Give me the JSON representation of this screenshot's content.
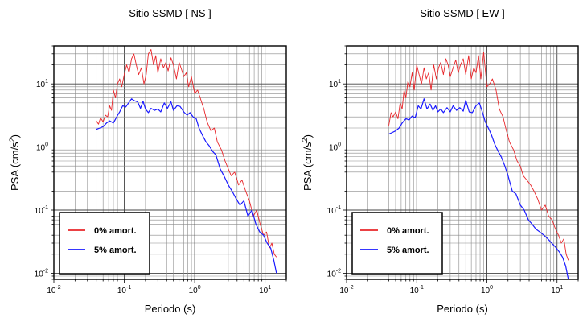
{
  "chart_data": [
    {
      "type": "line",
      "title": "Sitio SSMD [ NS ]",
      "xlabel": "Periodo (s)",
      "ylabel": {
        "base": "PSA (cm/s",
        "sup": "2",
        "tail": ")"
      },
      "xscale": "log",
      "yscale": "log",
      "xlim": [
        0.01,
        20
      ],
      "ylim": [
        0.008,
        40
      ],
      "grid": true,
      "legend_position": "bottom-left",
      "xticks": [
        {
          "value": 0.01,
          "base": "10",
          "exp": "-2"
        },
        {
          "value": 0.1,
          "base": "10",
          "exp": "-1"
        },
        {
          "value": 1,
          "base": "10",
          "exp": "0"
        },
        {
          "value": 10,
          "base": "10",
          "exp": "1"
        }
      ],
      "yticks": [
        {
          "value": 0.01,
          "base": "10",
          "exp": "-2"
        },
        {
          "value": 0.1,
          "base": "10",
          "exp": "-1"
        },
        {
          "value": 1,
          "base": "10",
          "exp": "0"
        },
        {
          "value": 10,
          "base": "10",
          "exp": "1"
        }
      ],
      "series": [
        {
          "name": "0% amort.",
          "color": "#e8262a",
          "x": [
            0.04,
            0.043,
            0.046,
            0.05,
            0.054,
            0.058,
            0.062,
            0.066,
            0.07,
            0.075,
            0.08,
            0.086,
            0.092,
            0.1,
            0.108,
            0.117,
            0.127,
            0.137,
            0.148,
            0.16,
            0.175,
            0.19,
            0.205,
            0.22,
            0.24,
            0.26,
            0.28,
            0.3,
            0.33,
            0.36,
            0.39,
            0.42,
            0.46,
            0.5,
            0.55,
            0.6,
            0.65,
            0.7,
            0.76,
            0.82,
            0.9,
            1.0,
            1.1,
            1.2,
            1.35,
            1.5,
            1.7,
            1.9,
            2.1,
            2.4,
            2.7,
            3.0,
            3.3,
            3.7,
            4.2,
            4.7,
            5.3,
            6.0,
            6.8,
            7.6,
            8.5,
            9.5,
            10.5,
            11.5,
            12.5,
            13.5,
            14.5
          ],
          "y": [
            2.6,
            2.3,
            2.9,
            2.5,
            3.2,
            3.0,
            4.5,
            3.8,
            8.0,
            6.0,
            10.0,
            12.0,
            9.0,
            14.0,
            20.0,
            15.0,
            25.0,
            30.0,
            20.0,
            14.0,
            18.0,
            10.0,
            14.0,
            30.0,
            35.0,
            20.0,
            28.0,
            15.0,
            25.0,
            18.0,
            22.0,
            16.0,
            26.0,
            20.0,
            12.0,
            22.0,
            17.0,
            13.0,
            15.0,
            9.0,
            13.0,
            7.0,
            8.0,
            6.0,
            4.0,
            2.5,
            1.8,
            2.0,
            1.2,
            0.9,
            0.6,
            0.45,
            0.35,
            0.4,
            0.25,
            0.3,
            0.2,
            0.14,
            0.08,
            0.1,
            0.06,
            0.04,
            0.045,
            0.025,
            0.03,
            0.02,
            0.018
          ]
        },
        {
          "name": "5% amort.",
          "color": "#1a1aff",
          "x": [
            0.04,
            0.045,
            0.05,
            0.056,
            0.062,
            0.07,
            0.078,
            0.086,
            0.095,
            0.105,
            0.115,
            0.127,
            0.14,
            0.155,
            0.17,
            0.185,
            0.2,
            0.22,
            0.24,
            0.27,
            0.3,
            0.33,
            0.37,
            0.41,
            0.46,
            0.5,
            0.56,
            0.62,
            0.7,
            0.78,
            0.86,
            0.95,
            1.05,
            1.15,
            1.3,
            1.45,
            1.6,
            1.8,
            2.0,
            2.3,
            2.6,
            3.0,
            3.4,
            3.9,
            4.4,
            5.0,
            5.7,
            6.5,
            7.4,
            8.4,
            9.5,
            10.7,
            12.0,
            13.3,
            14.5
          ],
          "y": [
            1.9,
            2.0,
            2.1,
            2.4,
            2.6,
            2.4,
            3.0,
            3.6,
            4.5,
            4.3,
            5.0,
            5.8,
            5.4,
            5.2,
            4.1,
            5.3,
            4.0,
            3.5,
            4.1,
            3.8,
            4.0,
            3.6,
            5.0,
            4.1,
            5.2,
            3.8,
            4.5,
            4.4,
            3.6,
            3.2,
            3.5,
            3.0,
            2.8,
            2.0,
            1.5,
            1.2,
            1.05,
            0.85,
            0.75,
            0.45,
            0.35,
            0.25,
            0.2,
            0.15,
            0.12,
            0.14,
            0.08,
            0.1,
            0.06,
            0.045,
            0.04,
            0.03,
            0.025,
            0.016,
            0.01
          ]
        }
      ]
    },
    {
      "type": "line",
      "title": "Sitio SSMD [ EW ]",
      "xlabel": "Periodo (s)",
      "ylabel": {
        "base": "PSA (cm/s",
        "sup": "2",
        "tail": ")"
      },
      "xscale": "log",
      "yscale": "log",
      "xlim": [
        0.01,
        20
      ],
      "ylim": [
        0.008,
        40
      ],
      "grid": true,
      "legend_position": "bottom-left",
      "xticks": [
        {
          "value": 0.01,
          "base": "10",
          "exp": "-2"
        },
        {
          "value": 0.1,
          "base": "10",
          "exp": "-1"
        },
        {
          "value": 1,
          "base": "10",
          "exp": "0"
        },
        {
          "value": 10,
          "base": "10",
          "exp": "1"
        }
      ],
      "yticks": [
        {
          "value": 0.01,
          "base": "10",
          "exp": "-2"
        },
        {
          "value": 0.1,
          "base": "10",
          "exp": "-1"
        },
        {
          "value": 1,
          "base": "10",
          "exp": "0"
        },
        {
          "value": 10,
          "base": "10",
          "exp": "1"
        }
      ],
      "series": [
        {
          "name": "0% amort.",
          "color": "#e8262a",
          "x": [
            0.04,
            0.043,
            0.046,
            0.05,
            0.054,
            0.058,
            0.062,
            0.066,
            0.07,
            0.075,
            0.08,
            0.086,
            0.092,
            0.1,
            0.108,
            0.117,
            0.127,
            0.137,
            0.148,
            0.16,
            0.175,
            0.19,
            0.205,
            0.22,
            0.24,
            0.26,
            0.28,
            0.3,
            0.33,
            0.36,
            0.39,
            0.42,
            0.46,
            0.5,
            0.55,
            0.6,
            0.65,
            0.7,
            0.76,
            0.82,
            0.9,
            1.0,
            1.1,
            1.2,
            1.35,
            1.5,
            1.7,
            1.9,
            2.1,
            2.4,
            2.7,
            3.0,
            3.3,
            3.7,
            4.2,
            4.7,
            5.3,
            6.0,
            6.8,
            7.6,
            8.5,
            9.5,
            10.5,
            11.5,
            12.5,
            13.5,
            14.5
          ],
          "y": [
            2.2,
            3.5,
            3.0,
            3.6,
            2.8,
            5.0,
            4.0,
            8.0,
            6.0,
            11.0,
            9.0,
            15.0,
            8.0,
            20.0,
            14.0,
            10.0,
            18.0,
            12.0,
            15.0,
            8.0,
            20.0,
            12.0,
            18.0,
            22.0,
            14.0,
            25.0,
            20.0,
            13.0,
            18.0,
            24.0,
            15.0,
            20.0,
            25.0,
            14.0,
            28.0,
            12.0,
            18.0,
            15.0,
            28.0,
            12.0,
            32.0,
            9.0,
            10.0,
            12.0,
            8.0,
            4.0,
            3.0,
            1.8,
            1.2,
            0.9,
            0.6,
            0.5,
            0.35,
            0.3,
            0.25,
            0.2,
            0.15,
            0.1,
            0.12,
            0.08,
            0.07,
            0.05,
            0.04,
            0.03,
            0.035,
            0.02,
            0.016
          ]
        },
        {
          "name": "5% amort.",
          "color": "#1a1aff",
          "x": [
            0.04,
            0.045,
            0.05,
            0.056,
            0.062,
            0.07,
            0.078,
            0.086,
            0.095,
            0.105,
            0.115,
            0.127,
            0.14,
            0.155,
            0.17,
            0.185,
            0.2,
            0.22,
            0.24,
            0.27,
            0.3,
            0.33,
            0.37,
            0.41,
            0.46,
            0.5,
            0.56,
            0.62,
            0.7,
            0.78,
            0.86,
            0.95,
            1.05,
            1.15,
            1.3,
            1.45,
            1.6,
            1.8,
            2.0,
            2.3,
            2.6,
            3.0,
            3.4,
            3.9,
            4.4,
            5.0,
            5.7,
            6.5,
            7.4,
            8.4,
            9.5,
            10.7,
            12.0,
            13.3,
            14.5
          ],
          "y": [
            1.6,
            1.7,
            1.8,
            2.0,
            2.4,
            2.8,
            2.7,
            3.1,
            2.9,
            4.5,
            4.0,
            5.8,
            4.0,
            4.8,
            3.8,
            4.5,
            3.6,
            4.0,
            3.5,
            4.2,
            3.6,
            4.5,
            3.8,
            4.2,
            3.7,
            5.5,
            3.6,
            3.5,
            4.5,
            5.0,
            3.6,
            2.5,
            2.0,
            1.6,
            1.1,
            0.85,
            0.7,
            0.5,
            0.35,
            0.2,
            0.18,
            0.12,
            0.1,
            0.07,
            0.06,
            0.05,
            0.045,
            0.04,
            0.035,
            0.03,
            0.026,
            0.022,
            0.018,
            0.013,
            0.008
          ]
        }
      ]
    }
  ]
}
